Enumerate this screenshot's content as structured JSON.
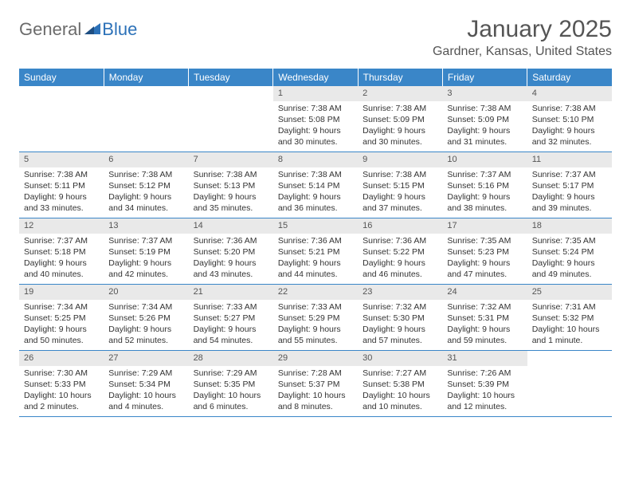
{
  "logo": {
    "general": "General",
    "blue": "Blue",
    "shape_color": "#2c71b8",
    "general_color": "#6b6b6b"
  },
  "title": "January 2025",
  "location": "Gardner, Kansas, United States",
  "header_bg": "#3a86c8",
  "header_fg": "#ffffff",
  "daynum_bg": "#e9e9e9",
  "border_color": "#3a86c8",
  "days_of_week": [
    "Sunday",
    "Monday",
    "Tuesday",
    "Wednesday",
    "Thursday",
    "Friday",
    "Saturday"
  ],
  "weeks": [
    [
      null,
      null,
      null,
      {
        "n": "1",
        "sr": "Sunrise: 7:38 AM",
        "ss": "Sunset: 5:08 PM",
        "dl": "Daylight: 9 hours and 30 minutes."
      },
      {
        "n": "2",
        "sr": "Sunrise: 7:38 AM",
        "ss": "Sunset: 5:09 PM",
        "dl": "Daylight: 9 hours and 30 minutes."
      },
      {
        "n": "3",
        "sr": "Sunrise: 7:38 AM",
        "ss": "Sunset: 5:09 PM",
        "dl": "Daylight: 9 hours and 31 minutes."
      },
      {
        "n": "4",
        "sr": "Sunrise: 7:38 AM",
        "ss": "Sunset: 5:10 PM",
        "dl": "Daylight: 9 hours and 32 minutes."
      }
    ],
    [
      {
        "n": "5",
        "sr": "Sunrise: 7:38 AM",
        "ss": "Sunset: 5:11 PM",
        "dl": "Daylight: 9 hours and 33 minutes."
      },
      {
        "n": "6",
        "sr": "Sunrise: 7:38 AM",
        "ss": "Sunset: 5:12 PM",
        "dl": "Daylight: 9 hours and 34 minutes."
      },
      {
        "n": "7",
        "sr": "Sunrise: 7:38 AM",
        "ss": "Sunset: 5:13 PM",
        "dl": "Daylight: 9 hours and 35 minutes."
      },
      {
        "n": "8",
        "sr": "Sunrise: 7:38 AM",
        "ss": "Sunset: 5:14 PM",
        "dl": "Daylight: 9 hours and 36 minutes."
      },
      {
        "n": "9",
        "sr": "Sunrise: 7:38 AM",
        "ss": "Sunset: 5:15 PM",
        "dl": "Daylight: 9 hours and 37 minutes."
      },
      {
        "n": "10",
        "sr": "Sunrise: 7:37 AM",
        "ss": "Sunset: 5:16 PM",
        "dl": "Daylight: 9 hours and 38 minutes."
      },
      {
        "n": "11",
        "sr": "Sunrise: 7:37 AM",
        "ss": "Sunset: 5:17 PM",
        "dl": "Daylight: 9 hours and 39 minutes."
      }
    ],
    [
      {
        "n": "12",
        "sr": "Sunrise: 7:37 AM",
        "ss": "Sunset: 5:18 PM",
        "dl": "Daylight: 9 hours and 40 minutes."
      },
      {
        "n": "13",
        "sr": "Sunrise: 7:37 AM",
        "ss": "Sunset: 5:19 PM",
        "dl": "Daylight: 9 hours and 42 minutes."
      },
      {
        "n": "14",
        "sr": "Sunrise: 7:36 AM",
        "ss": "Sunset: 5:20 PM",
        "dl": "Daylight: 9 hours and 43 minutes."
      },
      {
        "n": "15",
        "sr": "Sunrise: 7:36 AM",
        "ss": "Sunset: 5:21 PM",
        "dl": "Daylight: 9 hours and 44 minutes."
      },
      {
        "n": "16",
        "sr": "Sunrise: 7:36 AM",
        "ss": "Sunset: 5:22 PM",
        "dl": "Daylight: 9 hours and 46 minutes."
      },
      {
        "n": "17",
        "sr": "Sunrise: 7:35 AM",
        "ss": "Sunset: 5:23 PM",
        "dl": "Daylight: 9 hours and 47 minutes."
      },
      {
        "n": "18",
        "sr": "Sunrise: 7:35 AM",
        "ss": "Sunset: 5:24 PM",
        "dl": "Daylight: 9 hours and 49 minutes."
      }
    ],
    [
      {
        "n": "19",
        "sr": "Sunrise: 7:34 AM",
        "ss": "Sunset: 5:25 PM",
        "dl": "Daylight: 9 hours and 50 minutes."
      },
      {
        "n": "20",
        "sr": "Sunrise: 7:34 AM",
        "ss": "Sunset: 5:26 PM",
        "dl": "Daylight: 9 hours and 52 minutes."
      },
      {
        "n": "21",
        "sr": "Sunrise: 7:33 AM",
        "ss": "Sunset: 5:27 PM",
        "dl": "Daylight: 9 hours and 54 minutes."
      },
      {
        "n": "22",
        "sr": "Sunrise: 7:33 AM",
        "ss": "Sunset: 5:29 PM",
        "dl": "Daylight: 9 hours and 55 minutes."
      },
      {
        "n": "23",
        "sr": "Sunrise: 7:32 AM",
        "ss": "Sunset: 5:30 PM",
        "dl": "Daylight: 9 hours and 57 minutes."
      },
      {
        "n": "24",
        "sr": "Sunrise: 7:32 AM",
        "ss": "Sunset: 5:31 PM",
        "dl": "Daylight: 9 hours and 59 minutes."
      },
      {
        "n": "25",
        "sr": "Sunrise: 7:31 AM",
        "ss": "Sunset: 5:32 PM",
        "dl": "Daylight: 10 hours and 1 minute."
      }
    ],
    [
      {
        "n": "26",
        "sr": "Sunrise: 7:30 AM",
        "ss": "Sunset: 5:33 PM",
        "dl": "Daylight: 10 hours and 2 minutes."
      },
      {
        "n": "27",
        "sr": "Sunrise: 7:29 AM",
        "ss": "Sunset: 5:34 PM",
        "dl": "Daylight: 10 hours and 4 minutes."
      },
      {
        "n": "28",
        "sr": "Sunrise: 7:29 AM",
        "ss": "Sunset: 5:35 PM",
        "dl": "Daylight: 10 hours and 6 minutes."
      },
      {
        "n": "29",
        "sr": "Sunrise: 7:28 AM",
        "ss": "Sunset: 5:37 PM",
        "dl": "Daylight: 10 hours and 8 minutes."
      },
      {
        "n": "30",
        "sr": "Sunrise: 7:27 AM",
        "ss": "Sunset: 5:38 PM",
        "dl": "Daylight: 10 hours and 10 minutes."
      },
      {
        "n": "31",
        "sr": "Sunrise: 7:26 AM",
        "ss": "Sunset: 5:39 PM",
        "dl": "Daylight: 10 hours and 12 minutes."
      },
      null
    ]
  ]
}
